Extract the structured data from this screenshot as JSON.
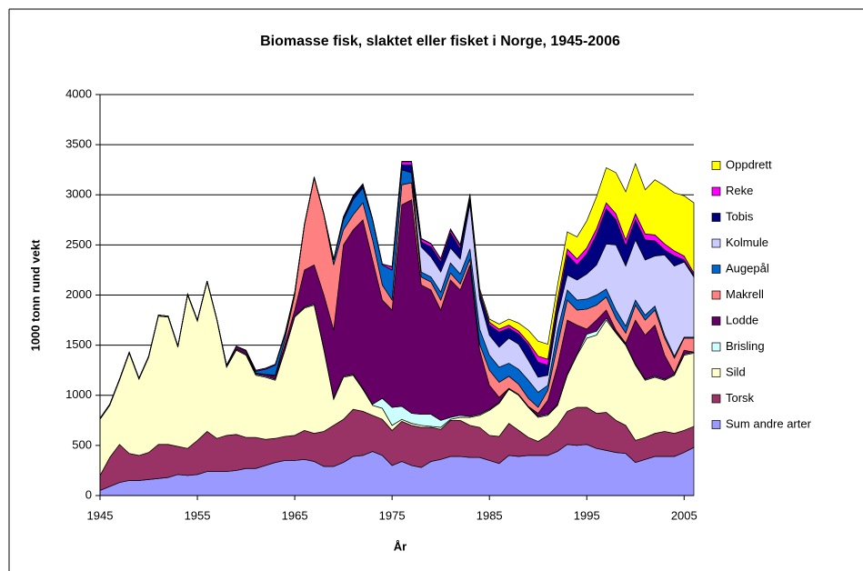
{
  "chart_data": {
    "type": "stacked_area",
    "title": "Biomasse fisk, slaktet eller fisket i Norge, 1945-2006",
    "xlabel": "År",
    "ylabel": "1000 tonn rund vekt",
    "x": [
      1945,
      1946,
      1947,
      1948,
      1949,
      1950,
      1951,
      1952,
      1953,
      1954,
      1955,
      1956,
      1957,
      1958,
      1959,
      1960,
      1961,
      1962,
      1963,
      1964,
      1965,
      1966,
      1967,
      1968,
      1969,
      1970,
      1971,
      1972,
      1973,
      1974,
      1975,
      1976,
      1977,
      1978,
      1979,
      1980,
      1981,
      1982,
      1983,
      1984,
      1985,
      1986,
      1987,
      1988,
      1989,
      1990,
      1991,
      1992,
      1993,
      1994,
      1995,
      1996,
      1997,
      1998,
      1999,
      2000,
      2001,
      2002,
      2003,
      2004,
      2005,
      2006
    ],
    "xlim": [
      1945,
      2006
    ],
    "xticks": [
      1945,
      1955,
      1965,
      1975,
      1985,
      1995,
      2005
    ],
    "ylim": [
      0,
      4000
    ],
    "yticks": [
      0,
      500,
      1000,
      1500,
      2000,
      2500,
      3000,
      3500,
      4000
    ],
    "grid": true,
    "legend": "right",
    "series": [
      {
        "name": "Sum andre arter",
        "color": "#9999ff",
        "values": [
          50,
          90,
          130,
          150,
          150,
          160,
          170,
          180,
          210,
          200,
          210,
          240,
          240,
          240,
          250,
          270,
          270,
          300,
          330,
          350,
          350,
          360,
          340,
          290,
          290,
          330,
          390,
          400,
          440,
          400,
          300,
          340,
          300,
          280,
          340,
          360,
          390,
          390,
          380,
          380,
          350,
          320,
          400,
          390,
          400,
          400,
          400,
          440,
          510,
          500,
          510,
          470,
          450,
          430,
          420,
          330,
          360,
          390,
          390,
          390,
          430,
          480
        ]
      },
      {
        "name": "Torsk",
        "color": "#993366",
        "values": [
          150,
          290,
          380,
          270,
          250,
          270,
          340,
          330,
          280,
          270,
          340,
          400,
          330,
          360,
          360,
          310,
          310,
          260,
          240,
          240,
          250,
          290,
          280,
          350,
          410,
          430,
          470,
          440,
          360,
          360,
          350,
          400,
          400,
          400,
          340,
          300,
          360,
          360,
          320,
          300,
          250,
          270,
          320,
          260,
          180,
          140,
          200,
          260,
          330,
          380,
          370,
          350,
          380,
          320,
          280,
          220,
          220,
          230,
          250,
          230,
          220,
          210
        ]
      },
      {
        "name": "Sild",
        "color": "#ffffcc",
        "values": [
          560,
          520,
          640,
          1000,
          760,
          950,
          1280,
          1270,
          990,
          1530,
          1190,
          1490,
          1180,
          680,
          840,
          820,
          620,
          620,
          580,
          860,
          1180,
          1220,
          1280,
          810,
          260,
          420,
          340,
          220,
          100,
          110,
          50,
          20,
          20,
          20,
          10,
          20,
          10,
          30,
          80,
          120,
          250,
          330,
          340,
          350,
          300,
          240,
          200,
          200,
          360,
          520,
          690,
          780,
          920,
          870,
          800,
          750,
          570,
          560,
          510,
          580,
          750,
          730
        ]
      },
      {
        "name": "Brisling",
        "color": "#ccffff",
        "values": [
          10,
          10,
          10,
          10,
          10,
          10,
          10,
          10,
          10,
          10,
          10,
          10,
          10,
          10,
          10,
          10,
          10,
          10,
          10,
          10,
          10,
          10,
          10,
          10,
          10,
          10,
          10,
          10,
          10,
          100,
          180,
          130,
          100,
          110,
          120,
          70,
          20,
          20,
          10,
          10,
          10,
          10,
          10,
          10,
          10,
          10,
          10,
          10,
          10,
          10,
          40,
          40,
          20,
          10,
          10,
          10,
          10,
          10,
          10,
          10,
          10,
          10
        ]
      },
      {
        "name": "Lodde",
        "color": "#660066",
        "values": [
          0,
          0,
          0,
          0,
          0,
          0,
          0,
          0,
          0,
          0,
          0,
          0,
          0,
          10,
          30,
          30,
          10,
          20,
          30,
          50,
          60,
          370,
          390,
          540,
          680,
          1310,
          1440,
          1680,
          1440,
          980,
          970,
          2010,
          2130,
          1290,
          1240,
          1100,
          1370,
          1250,
          1510,
          640,
          240,
          50,
          0,
          0,
          0,
          30,
          140,
          390,
          540,
          290,
          50,
          110,
          80,
          20,
          10,
          440,
          440,
          510,
          240,
          10,
          40,
          0
        ]
      },
      {
        "name": "Makrell",
        "color": "#ff8080",
        "values": [
          0,
          0,
          0,
          0,
          0,
          0,
          0,
          0,
          0,
          0,
          0,
          0,
          0,
          0,
          0,
          0,
          0,
          0,
          10,
          50,
          150,
          450,
          870,
          800,
          650,
          150,
          150,
          170,
          200,
          150,
          100,
          200,
          170,
          80,
          80,
          100,
          70,
          60,
          60,
          60,
          150,
          150,
          120,
          100,
          80,
          60,
          100,
          200,
          200,
          150,
          200,
          150,
          130,
          120,
          100,
          150,
          150,
          150,
          170,
          150,
          120,
          140
        ]
      },
      {
        "name": "Augepål",
        "color": "#0066cc",
        "values": [
          0,
          0,
          0,
          0,
          0,
          0,
          0,
          0,
          0,
          0,
          0,
          0,
          0,
          0,
          0,
          0,
          20,
          50,
          100,
          50,
          20,
          0,
          0,
          0,
          50,
          100,
          150,
          150,
          200,
          200,
          300,
          150,
          100,
          50,
          50,
          80,
          100,
          100,
          100,
          150,
          150,
          150,
          130,
          150,
          180,
          150,
          50,
          150,
          100,
          100,
          100,
          100,
          80,
          80,
          70,
          50,
          50,
          40,
          30,
          20,
          10,
          10
        ]
      },
      {
        "name": "Kolmule",
        "color": "#ccccff",
        "values": [
          0,
          0,
          0,
          0,
          0,
          0,
          0,
          0,
          0,
          0,
          0,
          0,
          0,
          0,
          0,
          0,
          0,
          0,
          0,
          0,
          0,
          0,
          0,
          0,
          0,
          0,
          0,
          0,
          0,
          0,
          0,
          0,
          0,
          250,
          200,
          200,
          150,
          150,
          450,
          300,
          200,
          200,
          250,
          250,
          200,
          150,
          100,
          150,
          150,
          200,
          250,
          300,
          450,
          650,
          600,
          600,
          550,
          500,
          800,
          900,
          750,
          600
        ]
      },
      {
        "name": "Tobis",
        "color": "#000080",
        "values": [
          0,
          0,
          0,
          0,
          0,
          0,
          0,
          0,
          0,
          0,
          0,
          0,
          0,
          0,
          0,
          0,
          0,
          0,
          0,
          0,
          0,
          0,
          0,
          0,
          0,
          20,
          30,
          30,
          0,
          0,
          0,
          50,
          80,
          50,
          100,
          100,
          150,
          100,
          50,
          50,
          100,
          150,
          100,
          100,
          150,
          150,
          100,
          100,
          200,
          150,
          200,
          300,
          350,
          250,
          200,
          200,
          200,
          150,
          50,
          100,
          20,
          20
        ]
      },
      {
        "name": "Reke",
        "color": "#ff00ff",
        "values": [
          0,
          0,
          0,
          0,
          0,
          0,
          0,
          0,
          0,
          0,
          0,
          0,
          0,
          0,
          0,
          10,
          10,
          10,
          10,
          10,
          10,
          10,
          10,
          10,
          10,
          10,
          10,
          10,
          10,
          10,
          30,
          30,
          30,
          30,
          30,
          30,
          30,
          30,
          30,
          30,
          30,
          30,
          30,
          30,
          30,
          60,
          60,
          60,
          60,
          60,
          60,
          60,
          60,
          60,
          60,
          60,
          60,
          60,
          60,
          50,
          40,
          20
        ]
      },
      {
        "name": "Oppdrett",
        "color": "#ffff00",
        "values": [
          0,
          0,
          0,
          0,
          0,
          0,
          0,
          0,
          0,
          0,
          0,
          0,
          0,
          0,
          0,
          0,
          0,
          0,
          0,
          0,
          0,
          0,
          0,
          0,
          0,
          0,
          0,
          0,
          0,
          0,
          5,
          5,
          5,
          5,
          5,
          5,
          10,
          15,
          20,
          25,
          30,
          50,
          60,
          80,
          120,
          150,
          150,
          140,
          170,
          220,
          270,
          320,
          350,
          410,
          480,
          500,
          440,
          550,
          580,
          580,
          600,
          700
        ]
      }
    ]
  }
}
